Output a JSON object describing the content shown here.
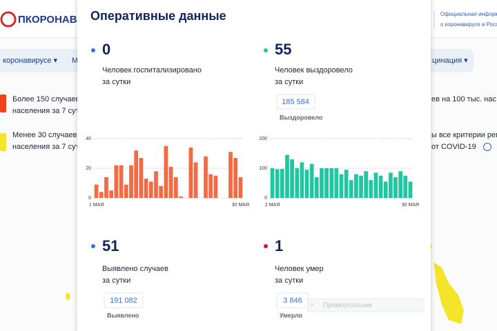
{
  "header": {
    "logo": "ПКОРОНАВИ",
    "info_line1": "Официальная информ",
    "info_line2": "о коронавирусе в Росс"
  },
  "nav": [
    "коронавирусе ▾",
    "М",
    "цинация ▾"
  ],
  "legend": [
    {
      "line1": "Более 150 случаев",
      "line2": "населения за 7 сут",
      "right": "ев на 100 тыс. нас"
    },
    {
      "line1": "Менее 30 случаев",
      "line2": "населения за 7 сут",
      "right": "ы все критерии рег",
      "right2": "от COVID-19"
    }
  ],
  "overlay_label": "Прямоугольник",
  "panel": {
    "title": "Оперативные данные",
    "stats": [
      {
        "value": 0,
        "label_line1": "Человек госпитализировано",
        "label_line2": "за сутки"
      },
      {
        "value": 55,
        "label_line1": "Человек выздоровело",
        "label_line2": "за сутки",
        "total": "185 584",
        "total_label": "Выздоровело"
      },
      {
        "value": 51,
        "label_line1": "Выявлено случаев",
        "label_line2": "за сутки",
        "total": "191 082",
        "total_label": "Выявлено"
      },
      {
        "value": 1,
        "label_line1": "Человек умер",
        "label_line2": "за сутки",
        "total": "3 846",
        "total_label": "Умерло"
      }
    ]
  },
  "chart_data": [
    {
      "type": "bar",
      "color": "#f26b45",
      "categories": [
        "1 МАЯ",
        null,
        null,
        null,
        null,
        null,
        null,
        null,
        null,
        null,
        null,
        null,
        null,
        null,
        null,
        null,
        null,
        null,
        null,
        null,
        null,
        null,
        null,
        null,
        null,
        null,
        null,
        null,
        null,
        "30 МАЯ"
      ],
      "values": [
        9,
        4,
        14,
        5,
        22,
        22,
        9,
        22,
        32,
        27,
        13,
        11,
        18,
        8,
        35,
        21,
        14,
        1,
        0,
        34,
        24,
        0,
        28,
        16,
        15,
        0,
        0,
        31,
        27,
        14
      ],
      "ylim": [
        0,
        40
      ],
      "yticks": [
        0,
        20,
        40
      ],
      "grid": true
    },
    {
      "type": "bar",
      "color": "#1fc6a0",
      "categories": [
        "2 МАЯ",
        null,
        null,
        null,
        null,
        null,
        null,
        null,
        null,
        null,
        null,
        null,
        null,
        null,
        null,
        null,
        null,
        null,
        null,
        null,
        null,
        null,
        null,
        null,
        null,
        null,
        null,
        null,
        "30 МАЯ"
      ],
      "values": [
        100,
        97,
        98,
        145,
        130,
        100,
        120,
        95,
        115,
        70,
        100,
        100,
        100,
        100,
        80,
        95,
        60,
        80,
        75,
        90,
        60,
        85,
        75,
        55,
        85,
        70,
        90,
        75,
        55
      ],
      "ylim": [
        0,
        200
      ],
      "yticks": [
        0,
        100,
        200
      ],
      "grid": true
    }
  ]
}
